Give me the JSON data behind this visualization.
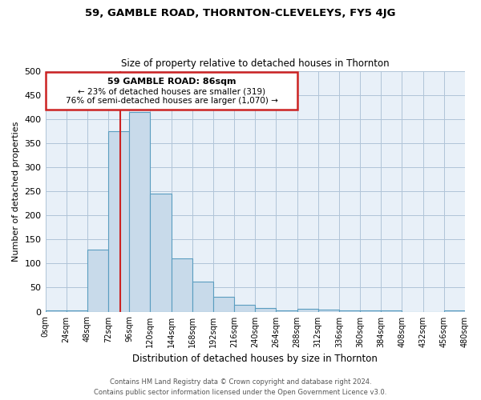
{
  "title": "59, GAMBLE ROAD, THORNTON-CLEVELEYS, FY5 4JG",
  "subtitle": "Size of property relative to detached houses in Thornton",
  "xlabel": "Distribution of detached houses by size in Thornton",
  "ylabel": "Number of detached properties",
  "footnote1": "Contains HM Land Registry data © Crown copyright and database right 2024.",
  "footnote2": "Contains public sector information licensed under the Open Government Licence v3.0.",
  "annotation_title": "59 GAMBLE ROAD: 86sqm",
  "annotation_line2": "← 23% of detached houses are smaller (319)",
  "annotation_line3": "76% of semi-detached houses are larger (1,070) →",
  "bar_color": "#c8daea",
  "bar_edge_color": "#5a9dc0",
  "background_color": "#ffffff",
  "plot_bg_color": "#e8f0f8",
  "grid_color": "#b0c4d8",
  "bins": [
    0,
    24,
    48,
    72,
    96,
    120,
    144,
    168,
    192,
    216,
    240,
    264,
    288,
    312,
    336,
    360,
    384,
    408,
    432,
    456,
    480
  ],
  "values": [
    3,
    3,
    128,
    375,
    415,
    245,
    110,
    63,
    30,
    14,
    7,
    3,
    6,
    4,
    2,
    2,
    2,
    0,
    0,
    3
  ],
  "ylim": [
    0,
    500
  ],
  "yticks": [
    0,
    50,
    100,
    150,
    200,
    250,
    300,
    350,
    400,
    450,
    500
  ],
  "property_sqm": 86,
  "ann_box_color": "#cc2222",
  "ann_line_color": "#cc2222"
}
